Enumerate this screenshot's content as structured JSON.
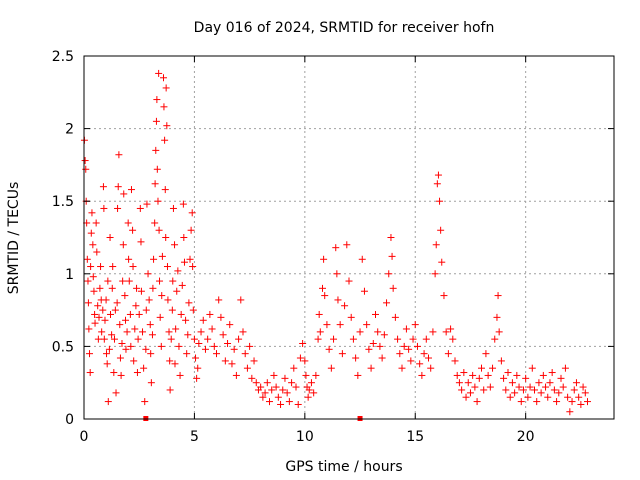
{
  "chart_data": {
    "type": "scatter",
    "title": "Day 016 of 2024, SRMTID for receiver hofn",
    "xlabel": "GPS time / hours",
    "ylabel": "SRMTID / TECUs",
    "xlim": [
      0,
      24
    ],
    "ylim": [
      0,
      2.5
    ],
    "grid": true,
    "marker": "+",
    "series_color": "#ff0000",
    "x_ticks": [
      {
        "value": 0,
        "label": "0"
      },
      {
        "value": 5,
        "label": "5"
      },
      {
        "value": 10,
        "label": "10"
      },
      {
        "value": 15,
        "label": "15"
      },
      {
        "value": 20,
        "label": "20"
      }
    ],
    "y_ticks": [
      {
        "value": 0,
        "label": "0"
      },
      {
        "value": 0.5,
        "label": "0.5"
      },
      {
        "value": 1,
        "label": "1"
      },
      {
        "value": 1.5,
        "label": "1.5"
      },
      {
        "value": 2,
        "label": "2"
      },
      {
        "value": 2.5,
        "label": "2.5"
      }
    ],
    "baseline_markers": [
      2.8,
      12.5
    ],
    "points": [
      [
        0.02,
        1.92
      ],
      [
        0.05,
        1.78
      ],
      [
        0.08,
        1.72
      ],
      [
        0.1,
        1.5
      ],
      [
        0.12,
        1.35
      ],
      [
        0.15,
        1.1
      ],
      [
        0.18,
        0.95
      ],
      [
        0.2,
        0.8
      ],
      [
        0.22,
        0.62
      ],
      [
        0.25,
        0.45
      ],
      [
        0.28,
        0.32
      ],
      [
        0.3,
        1.05
      ],
      [
        0.33,
        1.28
      ],
      [
        0.36,
        1.42
      ],
      [
        0.4,
        1.2
      ],
      [
        0.42,
        0.98
      ],
      [
        0.45,
        0.88
      ],
      [
        0.48,
        0.72
      ],
      [
        0.5,
        0.66
      ],
      [
        0.55,
        1.35
      ],
      [
        0.58,
        1.15
      ],
      [
        0.62,
        0.78
      ],
      [
        0.65,
        0.55
      ],
      [
        0.68,
        0.7
      ],
      [
        0.72,
        0.9
      ],
      [
        0.75,
        1.05
      ],
      [
        0.78,
        0.82
      ],
      [
        0.8,
        0.6
      ],
      [
        0.85,
        0.75
      ],
      [
        0.88,
        1.6
      ],
      [
        0.9,
        1.45
      ],
      [
        0.92,
        0.55
      ],
      [
        0.95,
        0.68
      ],
      [
        1.0,
        0.82
      ],
      [
        1.02,
        0.45
      ],
      [
        1.05,
        0.38
      ],
      [
        1.08,
        0.95
      ],
      [
        1.1,
        0.12
      ],
      [
        1.15,
        0.48
      ],
      [
        1.18,
        1.25
      ],
      [
        1.2,
        0.72
      ],
      [
        1.25,
        0.58
      ],
      [
        1.28,
        0.9
      ],
      [
        1.3,
        1.05
      ],
      [
        1.35,
        0.32
      ],
      [
        1.38,
        0.55
      ],
      [
        1.42,
        0.75
      ],
      [
        1.45,
        0.18
      ],
      [
        1.5,
        0.8
      ],
      [
        1.52,
        1.45
      ],
      [
        1.55,
        1.6
      ],
      [
        1.58,
        1.82
      ],
      [
        1.62,
        0.65
      ],
      [
        1.65,
        0.42
      ],
      [
        1.68,
        0.3
      ],
      [
        1.72,
        0.52
      ],
      [
        1.75,
        0.95
      ],
      [
        1.78,
        1.2
      ],
      [
        1.8,
        1.55
      ],
      [
        1.85,
        0.85
      ],
      [
        1.88,
        0.68
      ],
      [
        1.9,
        0.48
      ],
      [
        1.95,
        0.6
      ],
      [
        2.0,
        1.35
      ],
      [
        2.02,
        1.1
      ],
      [
        2.05,
        0.95
      ],
      [
        2.1,
        0.72
      ],
      [
        2.12,
        0.5
      ],
      [
        2.15,
        1.58
      ],
      [
        2.2,
        1.3
      ],
      [
        2.22,
        1.05
      ],
      [
        2.25,
        0.4
      ],
      [
        2.3,
        0.62
      ],
      [
        2.35,
        0.78
      ],
      [
        2.38,
        0.9
      ],
      [
        2.42,
        0.32
      ],
      [
        2.45,
        0.55
      ],
      [
        2.5,
        0.72
      ],
      [
        2.55,
        1.45
      ],
      [
        2.58,
        1.22
      ],
      [
        2.6,
        0.88
      ],
      [
        2.65,
        0.6
      ],
      [
        2.7,
        0.35
      ],
      [
        2.75,
        0.12
      ],
      [
        2.8,
        0.48
      ],
      [
        2.82,
        0.75
      ],
      [
        2.85,
        1.48
      ],
      [
        2.9,
        1.0
      ],
      [
        2.95,
        0.82
      ],
      [
        3.0,
        0.65
      ],
      [
        3.02,
        0.45
      ],
      [
        3.05,
        0.25
      ],
      [
        3.1,
        0.58
      ],
      [
        3.12,
        0.9
      ],
      [
        3.15,
        1.1
      ],
      [
        3.2,
        1.35
      ],
      [
        3.22,
        1.62
      ],
      [
        3.25,
        1.85
      ],
      [
        3.28,
        2.05
      ],
      [
        3.3,
        2.2
      ],
      [
        3.32,
        1.72
      ],
      [
        3.35,
        1.5
      ],
      [
        3.38,
        2.38
      ],
      [
        3.4,
        1.3
      ],
      [
        3.42,
        0.95
      ],
      [
        3.45,
        0.7
      ],
      [
        3.5,
        0.5
      ],
      [
        3.52,
        0.85
      ],
      [
        3.55,
        1.12
      ],
      [
        3.6,
        2.35
      ],
      [
        3.62,
        2.15
      ],
      [
        3.65,
        1.92
      ],
      [
        3.68,
        1.58
      ],
      [
        3.7,
        1.25
      ],
      [
        3.72,
        2.28
      ],
      [
        3.75,
        2.02
      ],
      [
        3.78,
        1.05
      ],
      [
        3.8,
        0.82
      ],
      [
        3.85,
        0.6
      ],
      [
        3.88,
        0.4
      ],
      [
        3.9,
        0.2
      ],
      [
        3.95,
        0.55
      ],
      [
        4.0,
        0.75
      ],
      [
        4.02,
        0.95
      ],
      [
        4.05,
        1.45
      ],
      [
        4.1,
        1.2
      ],
      [
        4.12,
        0.38
      ],
      [
        4.15,
        0.62
      ],
      [
        4.2,
        0.88
      ],
      [
        4.25,
        1.02
      ],
      [
        4.3,
        0.5
      ],
      [
        4.35,
        0.3
      ],
      [
        4.4,
        0.72
      ],
      [
        4.45,
        0.92
      ],
      [
        4.5,
        1.48
      ],
      [
        4.52,
        1.25
      ],
      [
        4.55,
        1.08
      ],
      [
        4.6,
        0.68
      ],
      [
        4.65,
        0.45
      ],
      [
        4.7,
        0.58
      ],
      [
        4.75,
        0.8
      ],
      [
        4.8,
        1.1
      ],
      [
        4.85,
        1.3
      ],
      [
        4.9,
        1.42
      ],
      [
        4.92,
        1.05
      ],
      [
        4.95,
        0.75
      ],
      [
        5.0,
        0.55
      ],
      [
        5.05,
        0.42
      ],
      [
        5.1,
        0.28
      ],
      [
        5.15,
        0.35
      ],
      [
        5.2,
        0.52
      ],
      [
        5.3,
        0.6
      ],
      [
        5.4,
        0.68
      ],
      [
        5.5,
        0.48
      ],
      [
        5.6,
        0.55
      ],
      [
        5.7,
        0.72
      ],
      [
        5.8,
        0.62
      ],
      [
        5.9,
        0.5
      ],
      [
        6.0,
        0.45
      ],
      [
        6.1,
        0.82
      ],
      [
        6.2,
        0.7
      ],
      [
        6.3,
        0.58
      ],
      [
        6.4,
        0.4
      ],
      [
        6.5,
        0.52
      ],
      [
        6.6,
        0.65
      ],
      [
        6.7,
        0.38
      ],
      [
        6.8,
        0.48
      ],
      [
        6.9,
        0.3
      ],
      [
        7.0,
        0.55
      ],
      [
        7.1,
        0.82
      ],
      [
        7.2,
        0.6
      ],
      [
        7.3,
        0.45
      ],
      [
        7.4,
        0.35
      ],
      [
        7.5,
        0.5
      ],
      [
        7.6,
        0.28
      ],
      [
        7.7,
        0.4
      ],
      [
        7.8,
        0.25
      ],
      [
        7.9,
        0.2
      ],
      [
        8.0,
        0.22
      ],
      [
        8.1,
        0.15
      ],
      [
        8.2,
        0.18
      ],
      [
        8.3,
        0.25
      ],
      [
        8.4,
        0.12
      ],
      [
        8.5,
        0.2
      ],
      [
        8.6,
        0.3
      ],
      [
        8.7,
        0.22
      ],
      [
        8.8,
        0.15
      ],
      [
        8.9,
        0.1
      ],
      [
        9.0,
        0.2
      ],
      [
        9.1,
        0.28
      ],
      [
        9.2,
        0.18
      ],
      [
        9.3,
        0.12
      ],
      [
        9.4,
        0.25
      ],
      [
        9.5,
        0.35
      ],
      [
        9.6,
        0.22
      ],
      [
        9.7,
        0.1
      ],
      [
        9.8,
        0.42
      ],
      [
        9.9,
        0.52
      ],
      [
        10.0,
        0.4
      ],
      [
        10.05,
        0.3
      ],
      [
        10.1,
        0.22
      ],
      [
        10.15,
        0.15
      ],
      [
        10.2,
        0.2
      ],
      [
        10.3,
        0.25
      ],
      [
        10.4,
        0.18
      ],
      [
        10.5,
        0.3
      ],
      [
        10.6,
        0.55
      ],
      [
        10.65,
        0.72
      ],
      [
        10.7,
        0.6
      ],
      [
        10.8,
        0.9
      ],
      [
        10.85,
        1.1
      ],
      [
        10.9,
        0.85
      ],
      [
        11.0,
        0.65
      ],
      [
        11.1,
        0.48
      ],
      [
        11.2,
        0.35
      ],
      [
        11.3,
        0.55
      ],
      [
        11.4,
        1.18
      ],
      [
        11.45,
        1.0
      ],
      [
        11.5,
        0.82
      ],
      [
        11.6,
        0.65
      ],
      [
        11.7,
        0.45
      ],
      [
        11.8,
        0.78
      ],
      [
        11.9,
        1.2
      ],
      [
        12.0,
        0.95
      ],
      [
        12.1,
        0.7
      ],
      [
        12.2,
        0.55
      ],
      [
        12.3,
        0.42
      ],
      [
        12.4,
        0.3
      ],
      [
        12.5,
        0.6
      ],
      [
        12.6,
        1.1
      ],
      [
        12.7,
        0.88
      ],
      [
        12.8,
        0.65
      ],
      [
        12.9,
        0.48
      ],
      [
        13.0,
        0.35
      ],
      [
        13.1,
        0.52
      ],
      [
        13.2,
        0.72
      ],
      [
        13.3,
        0.6
      ],
      [
        13.4,
        0.5
      ],
      [
        13.5,
        0.42
      ],
      [
        13.6,
        0.58
      ],
      [
        13.7,
        0.8
      ],
      [
        13.8,
        1.0
      ],
      [
        13.9,
        1.25
      ],
      [
        13.95,
        1.12
      ],
      [
        14.0,
        0.9
      ],
      [
        14.1,
        0.7
      ],
      [
        14.2,
        0.55
      ],
      [
        14.3,
        0.45
      ],
      [
        14.4,
        0.35
      ],
      [
        14.5,
        0.5
      ],
      [
        14.6,
        0.62
      ],
      [
        14.7,
        0.48
      ],
      [
        14.8,
        0.4
      ],
      [
        14.9,
        0.55
      ],
      [
        15.0,
        0.65
      ],
      [
        15.1,
        0.5
      ],
      [
        15.2,
        0.38
      ],
      [
        15.3,
        0.3
      ],
      [
        15.4,
        0.45
      ],
      [
        15.5,
        0.55
      ],
      [
        15.6,
        0.42
      ],
      [
        15.7,
        0.35
      ],
      [
        15.8,
        0.6
      ],
      [
        15.9,
        1.0
      ],
      [
        15.95,
        1.2
      ],
      [
        16.0,
        1.62
      ],
      [
        16.05,
        1.68
      ],
      [
        16.1,
        1.5
      ],
      [
        16.15,
        1.3
      ],
      [
        16.2,
        1.08
      ],
      [
        16.3,
        0.85
      ],
      [
        16.4,
        0.6
      ],
      [
        16.5,
        0.45
      ],
      [
        16.6,
        0.62
      ],
      [
        16.7,
        0.55
      ],
      [
        16.8,
        0.4
      ],
      [
        16.9,
        0.3
      ],
      [
        17.0,
        0.25
      ],
      [
        17.1,
        0.2
      ],
      [
        17.2,
        0.32
      ],
      [
        17.3,
        0.15
      ],
      [
        17.4,
        0.25
      ],
      [
        17.5,
        0.18
      ],
      [
        17.6,
        0.3
      ],
      [
        17.7,
        0.22
      ],
      [
        17.8,
        0.12
      ],
      [
        17.9,
        0.28
      ],
      [
        18.0,
        0.35
      ],
      [
        18.1,
        0.2
      ],
      [
        18.2,
        0.45
      ],
      [
        18.3,
        0.3
      ],
      [
        18.4,
        0.22
      ],
      [
        18.5,
        0.35
      ],
      [
        18.6,
        0.55
      ],
      [
        18.7,
        0.7
      ],
      [
        18.75,
        0.85
      ],
      [
        18.8,
        0.6
      ],
      [
        18.9,
        0.4
      ],
      [
        19.0,
        0.28
      ],
      [
        19.1,
        0.2
      ],
      [
        19.2,
        0.32
      ],
      [
        19.3,
        0.15
      ],
      [
        19.4,
        0.25
      ],
      [
        19.5,
        0.18
      ],
      [
        19.6,
        0.3
      ],
      [
        19.7,
        0.22
      ],
      [
        19.8,
        0.12
      ],
      [
        19.9,
        0.2
      ],
      [
        20.0,
        0.28
      ],
      [
        20.1,
        0.15
      ],
      [
        20.2,
        0.22
      ],
      [
        20.3,
        0.35
      ],
      [
        20.4,
        0.2
      ],
      [
        20.5,
        0.12
      ],
      [
        20.6,
        0.25
      ],
      [
        20.7,
        0.18
      ],
      [
        20.8,
        0.3
      ],
      [
        20.9,
        0.22
      ],
      [
        21.0,
        0.15
      ],
      [
        21.1,
        0.25
      ],
      [
        21.2,
        0.32
      ],
      [
        21.3,
        0.2
      ],
      [
        21.4,
        0.12
      ],
      [
        21.5,
        0.18
      ],
      [
        21.6,
        0.28
      ],
      [
        21.7,
        0.22
      ],
      [
        21.8,
        0.35
      ],
      [
        21.9,
        0.15
      ],
      [
        22.0,
        0.05
      ],
      [
        22.1,
        0.12
      ],
      [
        22.2,
        0.2
      ],
      [
        22.3,
        0.25
      ],
      [
        22.4,
        0.15
      ],
      [
        22.5,
        0.1
      ],
      [
        22.6,
        0.22
      ],
      [
        22.7,
        0.18
      ],
      [
        22.8,
        0.12
      ]
    ]
  }
}
